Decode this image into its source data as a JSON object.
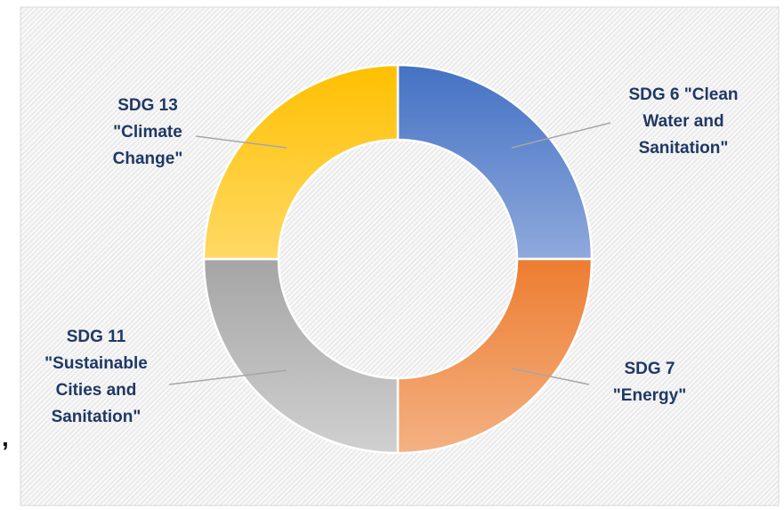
{
  "chart_data": {
    "type": "pie",
    "variant": "donut",
    "title": "",
    "slices": [
      {
        "label_lines": [
          "SDG 6 \"Clean",
          "Water and",
          "Sanitation\""
        ],
        "value": 25,
        "color_start": "#4472c4",
        "color_end": "#8fa9dc"
      },
      {
        "label_lines": [
          "SDG 7",
          "\"Energy\""
        ],
        "value": 25,
        "color_start": "#ed7d31",
        "color_end": "#f4b183"
      },
      {
        "label_lines": [
          "SDG 11",
          "\"Sustainable",
          "Cities and",
          "Sanitation\""
        ],
        "value": 25,
        "color_start": "#a5a5a5",
        "color_end": "#d0d0d0"
      },
      {
        "label_lines": [
          "SDG 13",
          "\"Climate",
          "Change\""
        ],
        "value": 25,
        "color_start": "#ffc000",
        "color_end": "#ffd966"
      }
    ],
    "label_color": "#1f3864",
    "leader_color": "#a6a6a6",
    "background": "hatched-light-gray",
    "legend": "none"
  },
  "stray_mark": ","
}
